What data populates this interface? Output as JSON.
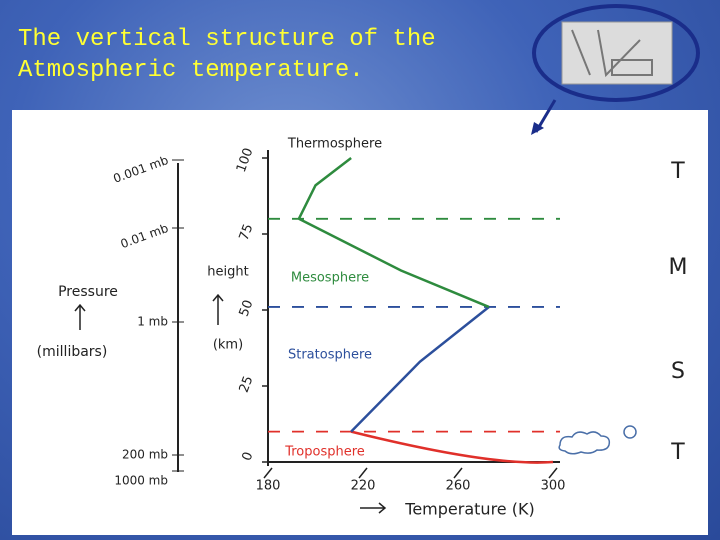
{
  "chart_data": {
    "type": "line",
    "title": "The vertical structure of the Atmospheric temperature.",
    "x_label": "Temperature (K)",
    "y_label_lines": [
      "height",
      "(km)"
    ],
    "xlim": [
      180,
      300
    ],
    "xticks": [
      180,
      220,
      260,
      300
    ],
    "ylim": [
      0,
      100
    ],
    "yticks": [
      0,
      25,
      50,
      75,
      100
    ],
    "series": [
      {
        "name": "Troposphere",
        "color": "#e0302a",
        "x": [
          300,
          215
        ],
        "values": [
          0,
          10
        ]
      },
      {
        "name": "Stratosphere",
        "color": "#2c4f9c",
        "x": [
          215,
          244,
          273
        ],
        "values": [
          10,
          33,
          51
        ]
      },
      {
        "name": "Mesosphere",
        "color": "#2e8b3e",
        "x": [
          273,
          236,
          193
        ],
        "values": [
          51,
          63,
          80
        ]
      },
      {
        "name": "Thermosphere",
        "color": "#2e8b3e",
        "x": [
          193,
          200,
          215
        ],
        "values": [
          80,
          91,
          100
        ]
      }
    ],
    "layer_letters": [
      "T",
      "M",
      "S",
      "T"
    ],
    "pressure_label_lines": [
      "Pressure",
      "(millibars)"
    ],
    "pressure_levels": [
      "0.001 mb",
      "0.01 mb",
      "1 mb",
      "200 mb",
      "1000 mb"
    ]
  }
}
